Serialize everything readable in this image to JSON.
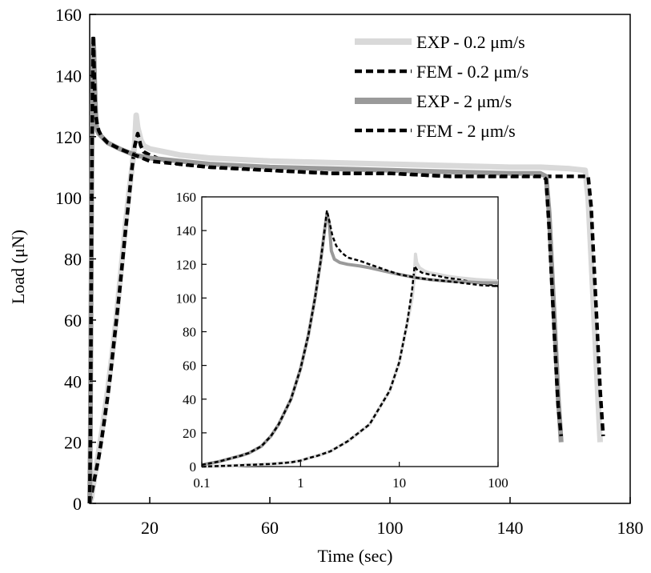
{
  "chart_data": [
    {
      "type": "line",
      "title": "",
      "xlabel": "Time (sec)",
      "ylabel": "Load (μN)",
      "xlim": [
        0,
        180
      ],
      "ylim": [
        0,
        160
      ],
      "x_ticks": [
        "20",
        "60",
        "100",
        "140",
        "180"
      ],
      "y_ticks": [
        "0",
        "20",
        "40",
        "60",
        "80",
        "100",
        "120",
        "140",
        "160"
      ],
      "grid": false,
      "legend_position": "top-right",
      "series": [
        {
          "name": "EXP - 0.2 μm/s",
          "color": "#d9d9d9",
          "style": "solid",
          "x": [
            0,
            0.6,
            1.2,
            2,
            3,
            4,
            5,
            6,
            7,
            8,
            9,
            10,
            11,
            12,
            13,
            14,
            15,
            15.5,
            16,
            17,
            18,
            20,
            25,
            30,
            40,
            60,
            80,
            100,
            120,
            140,
            150,
            160,
            165,
            166,
            167,
            168,
            169,
            170
          ],
          "y": [
            0,
            2,
            6,
            11,
            17,
            23,
            30,
            37,
            45,
            53,
            62,
            72,
            82,
            92,
            101,
            109,
            118,
            127,
            123,
            119,
            117,
            116,
            115,
            114,
            113,
            112,
            111.5,
            111,
            110.5,
            110,
            110,
            109.5,
            109,
            100,
            80,
            60,
            40,
            20
          ]
        },
        {
          "name": "FEM - 0.2 μm/s",
          "color": "#000000",
          "style": "dashed",
          "x": [
            0,
            0.6,
            1.2,
            2,
            3,
            4,
            5,
            6,
            7,
            8,
            9,
            10,
            11,
            12,
            13,
            14,
            15,
            16,
            17,
            18,
            20,
            25,
            30,
            40,
            60,
            80,
            100,
            120,
            140,
            150,
            160,
            166,
            167,
            168,
            169,
            170,
            171
          ],
          "y": [
            0,
            3,
            6,
            10,
            15,
            21,
            28,
            35,
            43,
            52,
            61,
            70,
            80,
            90,
            99,
            109,
            117,
            121,
            117,
            115,
            114,
            112,
            111,
            110,
            109,
            108,
            108,
            107,
            107,
            107,
            107,
            107,
            97,
            77,
            57,
            37,
            22
          ]
        },
        {
          "name": "EXP - 2 μm/s",
          "color": "#9a9a9a",
          "style": "solid",
          "x": [
            0,
            0.2,
            0.4,
            0.6,
            0.8,
            1,
            1.2,
            1.4,
            1.6,
            1.8,
            2,
            2.2,
            2.5,
            3,
            4,
            5,
            6,
            8,
            10,
            15,
            20,
            30,
            40,
            60,
            80,
            100,
            120,
            140,
            150,
            152,
            153,
            154,
            155,
            156,
            157
          ],
          "y": [
            0,
            20,
            55,
            95,
            125,
            145,
            152,
            148,
            140,
            133,
            128,
            124,
            122,
            121,
            120,
            119,
            118,
            117,
            116,
            114,
            113,
            112,
            111,
            110,
            109.5,
            109,
            108.5,
            108,
            108,
            107,
            95,
            75,
            55,
            35,
            20
          ]
        },
        {
          "name": "FEM - 2 μm/s",
          "color": "#000000",
          "style": "dashed",
          "x": [
            0,
            0.2,
            0.4,
            0.6,
            0.8,
            1,
            1.2,
            1.4,
            1.6,
            1.8,
            2,
            2.5,
            3,
            4,
            5,
            6,
            8,
            10,
            15,
            20,
            30,
            40,
            60,
            80,
            100,
            120,
            140,
            150,
            151,
            152,
            153,
            154,
            155,
            156,
            157
          ],
          "y": [
            0,
            18,
            50,
            90,
            120,
            140,
            153,
            145,
            137,
            131,
            127,
            124,
            122,
            120,
            119,
            118,
            117,
            116,
            114,
            112,
            111,
            110,
            109,
            108,
            108,
            107,
            107,
            107,
            107,
            106,
            90,
            70,
            50,
            32,
            22
          ]
        }
      ]
    },
    {
      "type": "line",
      "title": "",
      "inset": true,
      "x_scale": "log",
      "xlim": [
        0.1,
        100
      ],
      "ylim": [
        0,
        160
      ],
      "x_ticks": [
        "0.1",
        "1",
        "10",
        "100"
      ],
      "y_ticks": [
        "0",
        "20",
        "40",
        "60",
        "80",
        "100",
        "120",
        "140",
        "160"
      ],
      "series": [
        {
          "color": "#d9d9d9",
          "style": "solid",
          "x": [
            0.1,
            0.2,
            0.3,
            0.5,
            0.8,
            1,
            1.2,
            1.5,
            2,
            3,
            5,
            8,
            10,
            12,
            13.5,
            14.2,
            14.6,
            15,
            16,
            18,
            20,
            25,
            30,
            40,
            60,
            80,
            100
          ],
          "y": [
            0,
            0.5,
            1,
            1.5,
            2.5,
            3.5,
            5,
            6.5,
            9,
            15,
            25,
            45,
            62,
            85,
            100,
            112,
            126,
            121,
            118,
            116,
            115,
            114,
            113,
            112,
            111,
            110.5,
            110
          ]
        },
        {
          "color": "#000000",
          "style": "dashed",
          "x": [
            0.1,
            0.2,
            0.3,
            0.5,
            0.8,
            1,
            1.2,
            1.5,
            2,
            3,
            5,
            8,
            10,
            12,
            13.5,
            14.3,
            15,
            17,
            20,
            25,
            30,
            40,
            60,
            80,
            100
          ],
          "y": [
            0,
            0.5,
            1,
            1.5,
            2.5,
            3.5,
            5,
            6.5,
            9,
            15,
            25,
            45,
            62,
            85,
            105,
            119,
            117,
            115,
            114,
            113,
            112,
            111,
            109,
            108,
            107
          ]
        },
        {
          "color": "#9a9a9a",
          "style": "solid",
          "x": [
            0.1,
            0.15,
            0.2,
            0.25,
            0.3,
            0.4,
            0.5,
            0.6,
            0.8,
            1,
            1.2,
            1.4,
            1.6,
            1.75,
            1.85,
            1.95,
            2.05,
            2.2,
            2.5,
            3,
            4,
            5,
            7,
            10,
            15,
            20,
            30,
            50,
            70,
            100
          ],
          "y": [
            1,
            3,
            5,
            6.5,
            8,
            12,
            18,
            25,
            40,
            58,
            78,
            100,
            122,
            140,
            150,
            145,
            128,
            123,
            121,
            120,
            119,
            118,
            116,
            114,
            112,
            111,
            110,
            109.5,
            109,
            109
          ]
        },
        {
          "color": "#000000",
          "style": "dashed",
          "x": [
            0.1,
            0.15,
            0.2,
            0.25,
            0.3,
            0.4,
            0.5,
            0.6,
            0.8,
            1,
            1.2,
            1.4,
            1.6,
            1.75,
            1.85,
            1.95,
            2.1,
            2.3,
            2.6,
            3,
            4,
            5,
            7,
            10,
            15,
            20,
            30,
            50,
            70,
            100
          ],
          "y": [
            1,
            3,
            5,
            6.5,
            8,
            12,
            18,
            25,
            40,
            58,
            78,
            100,
            122,
            140,
            152,
            146,
            137,
            131,
            127,
            124,
            122,
            120,
            117,
            114,
            112,
            111,
            110,
            108.5,
            107.5,
            107
          ]
        }
      ]
    }
  ]
}
